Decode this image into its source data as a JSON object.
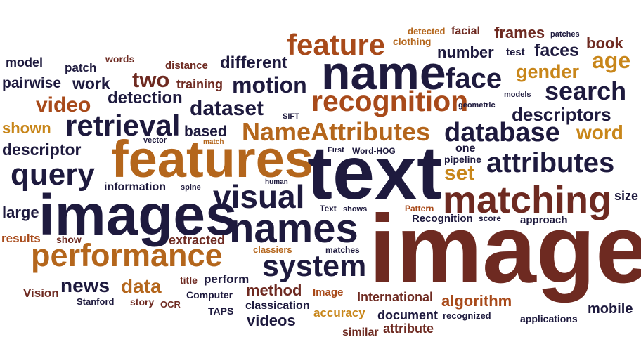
{
  "colors": {
    "navy": "#1e1a3e",
    "maroon": "#6e2a21",
    "rust": "#a84a1a",
    "ochre": "#c8861a",
    "tan": "#b4661c",
    "dark": "#2a2538"
  },
  "words": [
    {
      "text": "image",
      "color": "maroon"
    },
    {
      "text": "text",
      "color": "navy"
    },
    {
      "text": "images",
      "color": "navy"
    },
    {
      "text": "features",
      "color": "tan"
    },
    {
      "text": "name",
      "color": "navy"
    },
    {
      "text": "names",
      "color": "navy"
    },
    {
      "text": "matching",
      "color": "maroon"
    },
    {
      "text": "NameAttributes",
      "color": "tan"
    },
    {
      "text": "feature",
      "color": "rust"
    },
    {
      "text": "recognition",
      "color": "rust"
    },
    {
      "text": "performance",
      "color": "tan"
    },
    {
      "text": "system",
      "color": "navy"
    },
    {
      "text": "retrieval",
      "color": "navy"
    },
    {
      "text": "query",
      "color": "navy"
    },
    {
      "text": "visual",
      "color": "navy"
    },
    {
      "text": "attributes",
      "color": "navy"
    },
    {
      "text": "database",
      "color": "navy"
    },
    {
      "text": "search",
      "color": "navy"
    },
    {
      "text": "face",
      "color": "navy"
    },
    {
      "text": "video",
      "color": "rust"
    },
    {
      "text": "dataset",
      "color": "navy"
    },
    {
      "text": "motion",
      "color": "navy"
    },
    {
      "text": "data",
      "color": "tan"
    },
    {
      "text": "news",
      "color": "navy"
    },
    {
      "text": "descriptors",
      "color": "navy"
    },
    {
      "text": "age",
      "color": "ochre"
    },
    {
      "text": "gender",
      "color": "ochre"
    },
    {
      "text": "two",
      "color": "maroon"
    },
    {
      "text": "descriptor",
      "color": "navy"
    },
    {
      "text": "different",
      "color": "navy"
    },
    {
      "text": "detection",
      "color": "navy"
    },
    {
      "text": "word",
      "color": "ochre"
    },
    {
      "text": "faces",
      "color": "navy"
    },
    {
      "text": "set",
      "color": "ochre"
    },
    {
      "text": "shown",
      "color": "ochre"
    },
    {
      "text": "work",
      "color": "navy"
    },
    {
      "text": "number",
      "color": "navy"
    },
    {
      "text": "frames",
      "color": "maroon"
    },
    {
      "text": "book",
      "color": "maroon"
    },
    {
      "text": "large",
      "color": "navy"
    },
    {
      "text": "method",
      "color": "maroon"
    },
    {
      "text": "algorithm",
      "color": "rust"
    },
    {
      "text": "videos",
      "color": "navy"
    },
    {
      "text": "based",
      "color": "navy"
    },
    {
      "text": "pairwise",
      "color": "navy"
    },
    {
      "text": "patch",
      "color": "navy"
    },
    {
      "text": "model",
      "color": "navy"
    },
    {
      "text": "training",
      "color": "maroon"
    },
    {
      "text": "extracted",
      "color": "maroon"
    },
    {
      "text": "results",
      "color": "rust"
    },
    {
      "text": "mobile",
      "color": "navy"
    },
    {
      "text": "size",
      "color": "navy"
    },
    {
      "text": "information",
      "color": "navy"
    },
    {
      "text": "document",
      "color": "navy"
    },
    {
      "text": "accuracy",
      "color": "ochre"
    },
    {
      "text": "attribute",
      "color": "maroon"
    },
    {
      "text": "International",
      "color": "maroon"
    },
    {
      "text": "perform",
      "color": "navy"
    },
    {
      "text": "Vision",
      "color": "maroon"
    },
    {
      "text": "one",
      "color": "navy"
    },
    {
      "text": "classication",
      "color": "navy"
    },
    {
      "text": "Recognition",
      "color": "navy"
    },
    {
      "text": "approach",
      "color": "navy"
    },
    {
      "text": "similar",
      "color": "maroon"
    },
    {
      "text": "show",
      "color": "maroon"
    },
    {
      "text": "title",
      "color": "maroon"
    },
    {
      "text": "Image",
      "color": "rust"
    },
    {
      "text": "story",
      "color": "maroon"
    },
    {
      "text": "OCR",
      "color": "maroon"
    },
    {
      "text": "facial",
      "color": "maroon"
    },
    {
      "text": "test",
      "color": "navy"
    },
    {
      "text": "distance",
      "color": "maroon"
    },
    {
      "text": "pipeline",
      "color": "navy"
    },
    {
      "text": "words",
      "color": "maroon"
    },
    {
      "text": "clothing",
      "color": "tan"
    },
    {
      "text": "detected",
      "color": "tan"
    },
    {
      "text": "Computer",
      "color": "navy"
    },
    {
      "text": "applications",
      "color": "navy"
    },
    {
      "text": "recognized",
      "color": "navy"
    },
    {
      "text": "TAPS",
      "color": "navy"
    },
    {
      "text": "Stanford",
      "color": "navy"
    },
    {
      "text": "classiers",
      "color": "tan"
    },
    {
      "text": "Text",
      "color": "navy"
    },
    {
      "text": "shows",
      "color": "navy"
    },
    {
      "text": "Pattern",
      "color": "rust"
    },
    {
      "text": "score",
      "color": "navy"
    },
    {
      "text": "matches",
      "color": "navy"
    },
    {
      "text": "human",
      "color": "navy"
    },
    {
      "text": "spine",
      "color": "navy"
    },
    {
      "text": "Word-HOG",
      "color": "navy"
    },
    {
      "text": "First",
      "color": "navy"
    },
    {
      "text": "SIFT",
      "color": "navy"
    },
    {
      "text": "geometric",
      "color": "navy"
    },
    {
      "text": "models",
      "color": "navy"
    },
    {
      "text": "patches",
      "color": "navy"
    },
    {
      "text": "vector",
      "color": "navy"
    },
    {
      "text": "match",
      "color": "tan"
    }
  ]
}
